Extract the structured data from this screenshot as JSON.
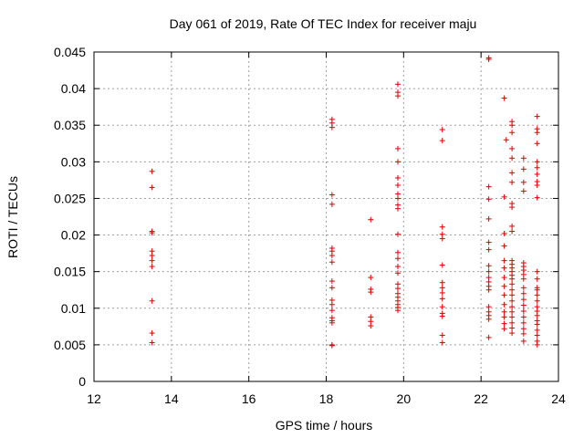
{
  "chart_data": {
    "type": "scatter",
    "title": "Day 061 of 2019, Rate Of TEC Index for receiver maju",
    "xlabel": "GPS time / hours",
    "ylabel": "ROTI / TECUs",
    "xlim": [
      12,
      24
    ],
    "ylim": [
      0,
      0.045
    ],
    "xticks": [
      12,
      14,
      16,
      18,
      20,
      22,
      24
    ],
    "xtick_labels": [
      "12",
      "14",
      "16",
      "18",
      "20",
      "22",
      "24"
    ],
    "yticks": [
      0,
      0.005,
      0.01,
      0.015,
      0.02,
      0.025,
      0.03,
      0.035,
      0.04,
      0.045
    ],
    "ytick_labels": [
      "0",
      "0.005",
      "0.01",
      "0.015",
      "0.02",
      "0.025",
      "0.03",
      "0.035",
      "0.04",
      "0.045"
    ],
    "grid": true,
    "marker": "+",
    "color": "#e00000",
    "series": [
      {
        "name": "ROTI",
        "points": [
          [
            13.5,
            0.0287
          ],
          [
            13.5,
            0.0265
          ],
          [
            13.5,
            0.0205
          ],
          [
            13.5,
            0.0203
          ],
          [
            13.5,
            0.0178
          ],
          [
            13.5,
            0.0172
          ],
          [
            13.5,
            0.0165
          ],
          [
            13.5,
            0.0157
          ],
          [
            13.5,
            0.011
          ],
          [
            13.5,
            0.0066
          ],
          [
            13.5,
            0.0053
          ],
          [
            18.15,
            0.0358
          ],
          [
            18.15,
            0.0353
          ],
          [
            18.15,
            0.0347
          ],
          [
            18.15,
            0.0255
          ],
          [
            18.15,
            0.0242
          ],
          [
            18.15,
            0.0182
          ],
          [
            18.15,
            0.0178
          ],
          [
            18.15,
            0.0172
          ],
          [
            18.15,
            0.0163
          ],
          [
            18.15,
            0.0137
          ],
          [
            18.15,
            0.0128
          ],
          [
            18.15,
            0.0111
          ],
          [
            18.15,
            0.0105
          ],
          [
            18.15,
            0.0097
          ],
          [
            18.15,
            0.0087
          ],
          [
            18.15,
            0.0083
          ],
          [
            18.15,
            0.008
          ],
          [
            18.15,
            0.005
          ],
          [
            18.15,
            0.0049
          ],
          [
            19.15,
            0.0221
          ],
          [
            19.15,
            0.0142
          ],
          [
            19.15,
            0.0126
          ],
          [
            19.15,
            0.0122
          ],
          [
            19.15,
            0.0088
          ],
          [
            19.15,
            0.0082
          ],
          [
            19.15,
            0.0076
          ],
          [
            19.85,
            0.0406
          ],
          [
            19.85,
            0.0395
          ],
          [
            19.85,
            0.039
          ],
          [
            19.85,
            0.0318
          ],
          [
            19.85,
            0.03
          ],
          [
            19.85,
            0.0278
          ],
          [
            19.85,
            0.0268
          ],
          [
            19.85,
            0.0256
          ],
          [
            19.85,
            0.025
          ],
          [
            19.85,
            0.0241
          ],
          [
            19.85,
            0.0236
          ],
          [
            19.85,
            0.0201
          ],
          [
            19.85,
            0.0176
          ],
          [
            19.85,
            0.0168
          ],
          [
            19.85,
            0.0157
          ],
          [
            19.85,
            0.0148
          ],
          [
            19.85,
            0.0133
          ],
          [
            19.85,
            0.0127
          ],
          [
            19.85,
            0.012
          ],
          [
            19.85,
            0.0115
          ],
          [
            19.85,
            0.011
          ],
          [
            19.85,
            0.0105
          ],
          [
            19.85,
            0.0101
          ],
          [
            19.85,
            0.0097
          ],
          [
            21.0,
            0.0344
          ],
          [
            21.0,
            0.0329
          ],
          [
            21.0,
            0.0211
          ],
          [
            21.0,
            0.0201
          ],
          [
            21.0,
            0.0195
          ],
          [
            21.0,
            0.0159
          ],
          [
            21.0,
            0.0135
          ],
          [
            21.0,
            0.0128
          ],
          [
            21.0,
            0.0121
          ],
          [
            21.0,
            0.0113
          ],
          [
            21.0,
            0.0102
          ],
          [
            21.0,
            0.0093
          ],
          [
            21.0,
            0.0089
          ],
          [
            21.0,
            0.0063
          ],
          [
            21.0,
            0.0053
          ],
          [
            22.2,
            0.0442
          ],
          [
            22.2,
            0.044
          ],
          [
            22.2,
            0.0266
          ],
          [
            22.2,
            0.0249
          ],
          [
            22.2,
            0.0222
          ],
          [
            22.2,
            0.019
          ],
          [
            22.2,
            0.018
          ],
          [
            22.2,
            0.0158
          ],
          [
            22.2,
            0.015
          ],
          [
            22.2,
            0.0142
          ],
          [
            22.2,
            0.0136
          ],
          [
            22.2,
            0.013
          ],
          [
            22.2,
            0.0125
          ],
          [
            22.2,
            0.0102
          ],
          [
            22.2,
            0.0095
          ],
          [
            22.2,
            0.009
          ],
          [
            22.2,
            0.0085
          ],
          [
            22.2,
            0.006
          ],
          [
            22.6,
            0.0387
          ],
          [
            22.65,
            0.033
          ],
          [
            22.6,
            0.0252
          ],
          [
            22.6,
            0.0202
          ],
          [
            22.6,
            0.0185
          ],
          [
            22.6,
            0.0165
          ],
          [
            22.6,
            0.0155
          ],
          [
            22.6,
            0.0142
          ],
          [
            22.6,
            0.013
          ],
          [
            22.6,
            0.0118
          ],
          [
            22.6,
            0.0105
          ],
          [
            22.6,
            0.0095
          ],
          [
            22.6,
            0.0088
          ],
          [
            22.6,
            0.0079
          ],
          [
            22.6,
            0.0072
          ],
          [
            22.8,
            0.0355
          ],
          [
            22.8,
            0.035
          ],
          [
            22.8,
            0.034
          ],
          [
            22.8,
            0.0318
          ],
          [
            22.8,
            0.0305
          ],
          [
            22.8,
            0.0285
          ],
          [
            22.8,
            0.0272
          ],
          [
            22.8,
            0.0243
          ],
          [
            22.8,
            0.0238
          ],
          [
            22.8,
            0.0212
          ],
          [
            22.8,
            0.0205
          ],
          [
            22.8,
            0.0165
          ],
          [
            22.8,
            0.016
          ],
          [
            22.8,
            0.0155
          ],
          [
            22.8,
            0.015
          ],
          [
            22.8,
            0.0145
          ],
          [
            22.8,
            0.014
          ],
          [
            22.8,
            0.0133
          ],
          [
            22.8,
            0.0125
          ],
          [
            22.8,
            0.0118
          ],
          [
            22.8,
            0.011
          ],
          [
            22.8,
            0.0102
          ],
          [
            22.8,
            0.0095
          ],
          [
            22.8,
            0.0088
          ],
          [
            22.8,
            0.008
          ],
          [
            22.8,
            0.0073
          ],
          [
            22.8,
            0.0066
          ],
          [
            23.1,
            0.0305
          ],
          [
            23.1,
            0.029
          ],
          [
            23.1,
            0.0272
          ],
          [
            23.1,
            0.026
          ],
          [
            23.1,
            0.0162
          ],
          [
            23.1,
            0.0157
          ],
          [
            23.1,
            0.0152
          ],
          [
            23.1,
            0.0146
          ],
          [
            23.1,
            0.014
          ],
          [
            23.1,
            0.0128
          ],
          [
            23.1,
            0.012
          ],
          [
            23.1,
            0.0112
          ],
          [
            23.1,
            0.0104
          ],
          [
            23.1,
            0.0096
          ],
          [
            23.1,
            0.0088
          ],
          [
            23.1,
            0.008
          ],
          [
            23.1,
            0.0072
          ],
          [
            23.1,
            0.0065
          ],
          [
            23.1,
            0.0055
          ],
          [
            23.45,
            0.0362
          ],
          [
            23.45,
            0.0345
          ],
          [
            23.45,
            0.034
          ],
          [
            23.45,
            0.0325
          ],
          [
            23.45,
            0.03
          ],
          [
            23.45,
            0.0292
          ],
          [
            23.45,
            0.0283
          ],
          [
            23.45,
            0.0273
          ],
          [
            23.45,
            0.0268
          ],
          [
            23.45,
            0.0251
          ],
          [
            23.45,
            0.015
          ],
          [
            23.45,
            0.014
          ],
          [
            23.45,
            0.0128
          ],
          [
            23.45,
            0.0125
          ],
          [
            23.45,
            0.0118
          ],
          [
            23.45,
            0.011
          ],
          [
            23.45,
            0.0102
          ],
          [
            23.45,
            0.0096
          ],
          [
            23.45,
            0.009
          ],
          [
            23.45,
            0.0083
          ],
          [
            23.45,
            0.0078
          ],
          [
            23.45,
            0.007
          ],
          [
            23.45,
            0.0063
          ],
          [
            23.45,
            0.0055
          ],
          [
            23.45,
            0.005
          ]
        ]
      }
    ]
  }
}
